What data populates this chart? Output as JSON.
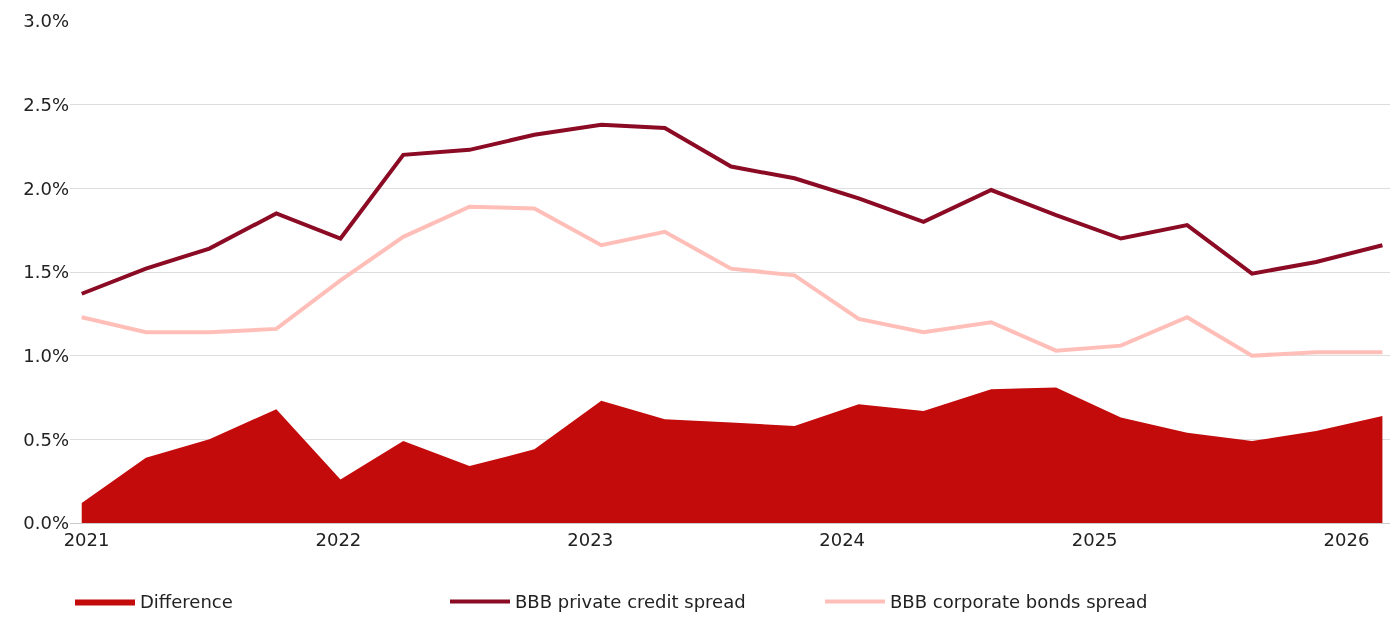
{
  "chart_data": {
    "type": "line",
    "x": [
      "2020-12-25",
      "2021-03-28",
      "2021-06-28",
      "2021-10-03",
      "2022-01-04",
      "2022-04-05",
      "2022-07-10",
      "2022-10-12",
      "2023-01-17",
      "2023-04-19",
      "2023-07-24",
      "2023-10-24",
      "2024-01-25",
      "2024-04-28",
      "2024-08-04",
      "2024-11-06",
      "2025-02-08",
      "2025-05-15",
      "2025-08-17",
      "2025-11-18",
      "2026-02-22"
    ],
    "series": [
      {
        "name": "Difference",
        "type": "area",
        "color": "#c30b0b",
        "values": [
          0.12,
          0.39,
          0.5,
          0.68,
          0.26,
          0.49,
          0.34,
          0.44,
          0.73,
          0.62,
          0.6,
          0.58,
          0.71,
          0.67,
          0.8,
          0.81,
          0.63,
          0.54,
          0.49,
          0.55,
          0.64
        ]
      },
      {
        "name": "BBB private credit spread",
        "color": "#8b0a24",
        "values": [
          1.37,
          1.52,
          1.64,
          1.85,
          1.7,
          2.2,
          2.23,
          2.32,
          2.38,
          2.36,
          2.13,
          2.06,
          1.94,
          1.8,
          1.99,
          1.84,
          1.7,
          1.78,
          1.49,
          1.56,
          1.66
        ]
      },
      {
        "name": "BBB corporate bonds spread",
        "color": "#ffbfb8",
        "values": [
          1.23,
          1.14,
          1.14,
          1.16,
          1.45,
          1.71,
          1.89,
          1.88,
          1.66,
          1.74,
          1.52,
          1.48,
          1.22,
          1.14,
          1.2,
          1.03,
          1.06,
          1.23,
          1.0,
          1.02,
          1.02
        ]
      }
    ],
    "xlim": [
      "2020-12-08",
      "2026-03-05"
    ],
    "xticks": [
      "2021",
      "2022",
      "2023",
      "2024",
      "2025",
      "2026"
    ],
    "ylim": [
      0,
      3.0
    ],
    "yticks": [
      {
        "value": 0,
        "label": "0.0%"
      },
      {
        "value": 0.5,
        "label": "0.5%"
      },
      {
        "value": 1.0,
        "label": "1.0%"
      },
      {
        "value": 1.5,
        "label": "1.5%"
      },
      {
        "value": 2.0,
        "label": "2.0%"
      },
      {
        "value": 2.5,
        "label": "2.5%"
      },
      {
        "value": 3.0,
        "label": "3.0%"
      }
    ],
    "grid": "y",
    "legend": "bottom left",
    "marker": "none",
    "line_style": "solid"
  }
}
